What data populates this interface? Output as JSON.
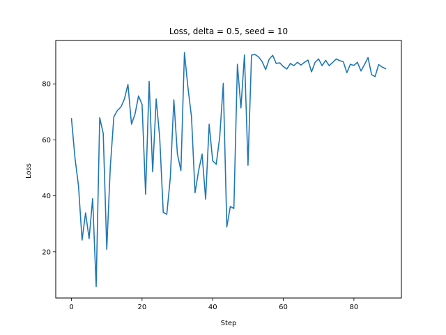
{
  "chart_data": {
    "type": "line",
    "title": "Loss, delta = 0.5, seed = 10",
    "xlabel": "Step",
    "ylabel": "Loss",
    "xlim": [
      -4.45,
      93.45
    ],
    "ylim": [
      3.5,
      95.5
    ],
    "xticks": [
      0,
      20,
      40,
      60,
      80
    ],
    "yticks": [
      20,
      40,
      60,
      80
    ],
    "grid": false,
    "legend": "none",
    "line_color": "#1f77b4",
    "series": [
      {
        "x": [
          0,
          1,
          2,
          3,
          4,
          5,
          6,
          7,
          8,
          9,
          10,
          11,
          12,
          13,
          14,
          15,
          16,
          17,
          18,
          19,
          20,
          21,
          22,
          23,
          24,
          25,
          26,
          27,
          28,
          29,
          30,
          31,
          32,
          33,
          34,
          35,
          36,
          37,
          38,
          39,
          40,
          41,
          42,
          43,
          44,
          45,
          46,
          47,
          48,
          49,
          50,
          51,
          52,
          53,
          54,
          55,
          56,
          57,
          58,
          59,
          60,
          61,
          62,
          63,
          64,
          65,
          66,
          67,
          68,
          69,
          70,
          71,
          72,
          73,
          74,
          75,
          76,
          77,
          78,
          79,
          80,
          81,
          82,
          83,
          84,
          85,
          86,
          87,
          88,
          89
        ],
        "values": [
          67.6,
          53.5,
          43.5,
          24.2,
          33.9,
          24.7,
          39.0,
          7.6,
          67.9,
          62.3,
          20.9,
          50.3,
          68.2,
          70.5,
          71.7,
          74.6,
          79.8,
          65.6,
          69.2,
          75.7,
          72.6,
          40.6,
          80.9,
          48.6,
          74.6,
          60.6,
          34.1,
          33.4,
          46.5,
          74.3,
          55.0,
          49.0,
          91.2,
          78.6,
          68.2,
          41.1,
          48.9,
          54.9,
          38.8,
          65.6,
          52.5,
          51.3,
          61.1,
          80.2,
          28.9,
          36.2,
          35.5,
          87.0,
          71.4,
          90.3,
          50.9,
          90.3,
          90.5,
          89.6,
          88.0,
          85.1,
          88.8,
          90.2,
          87.3,
          87.5,
          86.2,
          85.3,
          87.3,
          86.5,
          87.7,
          86.7,
          87.7,
          88.5,
          84.3,
          87.7,
          88.9,
          86.5,
          88.4,
          86.5,
          87.7,
          88.9,
          88.3,
          87.9,
          84.0,
          87.0,
          86.6,
          87.7,
          84.6,
          86.9,
          89.4,
          83.3,
          82.6,
          86.9,
          86.0,
          85.4
        ]
      }
    ]
  }
}
